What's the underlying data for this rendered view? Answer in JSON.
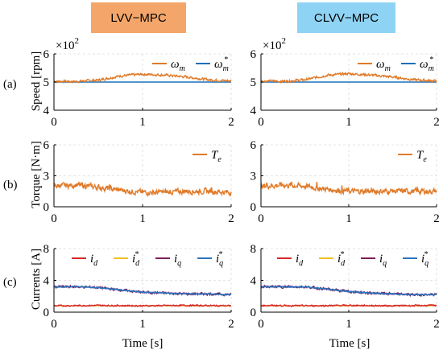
{
  "colors": {
    "omega_m": "#e07b2a",
    "omega_ref": "#1f6fb8",
    "torque": "#e07b2a",
    "i_d": "#d62728",
    "i_d_ref": "#f0c020",
    "i_q": "#7b1f5c",
    "i_q_ref": "#2a74c0",
    "header_lvv": "#f4a66a",
    "header_clvv": "#8fd3f4"
  },
  "headers": [
    "LVV−MPC",
    "CLVV−MPC"
  ],
  "rows": [
    {
      "label": "(a)",
      "ylabel": "Speed [rpm]",
      "yticks": [
        "4",
        "5",
        "6"
      ],
      "multiplier": "×10",
      "multiplier_exp": "2"
    },
    {
      "label": "(b)",
      "ylabel": "Torque [N·m]",
      "yticks": [
        "0",
        "3",
        "6"
      ]
    },
    {
      "label": "(c)",
      "ylabel": "Currents [A]",
      "yticks": [
        "0",
        "4",
        "8"
      ]
    }
  ],
  "xticks": [
    "0",
    "1",
    "2"
  ],
  "xlabel": "Time [s]",
  "legends": {
    "speed": [
      {
        "sym": "ω",
        "sub": "m",
        "sup": ""
      },
      {
        "sym": "ω",
        "sub": "m",
        "sup": "*"
      }
    ],
    "torque": [
      {
        "sym": "T",
        "sub": "e",
        "sup": ""
      }
    ],
    "currents": [
      {
        "sym": "i",
        "sub": "d",
        "sup": ""
      },
      {
        "sym": "i",
        "sub": "d",
        "sup": "*"
      },
      {
        "sym": "i",
        "sub": "q",
        "sup": ""
      },
      {
        "sym": "i",
        "sub": "q",
        "sup": "*"
      }
    ]
  },
  "chart_data": [
    {
      "type": "line",
      "panel": "LVV-MPC speed",
      "xlim": [
        0,
        2
      ],
      "ylim": [
        4,
        6
      ],
      "ylabel": "Speed [rpm]",
      "series": [
        {
          "name": "ω_m",
          "x": [
            0,
            0.25,
            0.5,
            0.75,
            1.0,
            1.25,
            1.5,
            1.75,
            2.0
          ],
          "y": [
            5.03,
            5.02,
            5.07,
            5.22,
            5.28,
            5.25,
            5.18,
            5.08,
            5.04
          ]
        },
        {
          "name": "ω_m*",
          "x": [
            0,
            2
          ],
          "y": [
            5.0,
            5.0
          ]
        }
      ]
    },
    {
      "type": "line",
      "panel": "CLVV-MPC speed",
      "xlim": [
        0,
        2
      ],
      "ylim": [
        4,
        6
      ],
      "ylabel": "Speed [rpm]",
      "series": [
        {
          "name": "ω_m",
          "x": [
            0,
            0.25,
            0.5,
            0.75,
            1.0,
            1.25,
            1.5,
            1.75,
            2.0
          ],
          "y": [
            5.04,
            5.03,
            5.08,
            5.24,
            5.3,
            5.25,
            5.18,
            5.08,
            5.04
          ]
        },
        {
          "name": "ω_m*",
          "x": [
            0,
            2
          ],
          "y": [
            5.0,
            5.0
          ]
        }
      ]
    },
    {
      "type": "line",
      "panel": "LVV-MPC torque",
      "xlim": [
        0,
        2
      ],
      "ylim": [
        0,
        6
      ],
      "ylabel": "Torque [N·m]",
      "series": [
        {
          "name": "T_e",
          "x": [
            0,
            0.25,
            0.5,
            0.75,
            1.0,
            1.25,
            1.5,
            1.75,
            2.0
          ],
          "y": [
            2.0,
            2.1,
            1.9,
            1.6,
            1.4,
            1.4,
            1.5,
            1.5,
            1.4
          ]
        }
      ]
    },
    {
      "type": "line",
      "panel": "CLVV-MPC torque",
      "xlim": [
        0,
        2
      ],
      "ylim": [
        0,
        6
      ],
      "ylabel": "Torque [N·m]",
      "series": [
        {
          "name": "T_e",
          "x": [
            0,
            0.25,
            0.5,
            0.75,
            1.0,
            1.25,
            1.5,
            1.75,
            2.0
          ],
          "y": [
            2.0,
            2.1,
            2.0,
            1.7,
            1.5,
            1.5,
            1.5,
            1.5,
            1.5
          ]
        }
      ]
    },
    {
      "type": "line",
      "panel": "LVV-MPC currents",
      "xlim": [
        0,
        2
      ],
      "ylim": [
        0,
        8
      ],
      "ylabel": "Currents [A]",
      "series": [
        {
          "name": "i_d",
          "x": [
            0,
            0.5,
            1.0,
            1.5,
            2.0
          ],
          "y": [
            0.8,
            0.85,
            0.8,
            0.85,
            0.8
          ]
        },
        {
          "name": "i_d*",
          "x": [
            0,
            2
          ],
          "y": [
            0.8,
            0.8
          ]
        },
        {
          "name": "i_q",
          "x": [
            0,
            0.25,
            0.5,
            0.75,
            1.0,
            1.25,
            1.5,
            1.75,
            2.0
          ],
          "y": [
            3.2,
            3.2,
            3.1,
            2.8,
            2.5,
            2.4,
            2.3,
            2.3,
            2.2
          ]
        },
        {
          "name": "i_q*",
          "x": [
            0,
            0.25,
            0.5,
            0.75,
            1.0,
            1.25,
            1.5,
            1.75,
            2.0
          ],
          "y": [
            3.2,
            3.2,
            3.1,
            2.8,
            2.5,
            2.4,
            2.3,
            2.3,
            2.2
          ]
        }
      ]
    },
    {
      "type": "line",
      "panel": "CLVV-MPC currents",
      "xlim": [
        0,
        2
      ],
      "ylim": [
        0,
        8
      ],
      "ylabel": "Currents [A]",
      "series": [
        {
          "name": "i_d",
          "x": [
            0,
            0.5,
            1.0,
            1.5,
            2.0
          ],
          "y": [
            0.85,
            0.8,
            0.85,
            0.8,
            0.85
          ]
        },
        {
          "name": "i_d*",
          "x": [
            0,
            2
          ],
          "y": [
            0.8,
            0.8
          ]
        },
        {
          "name": "i_q",
          "x": [
            0,
            0.25,
            0.5,
            0.75,
            1.0,
            1.25,
            1.5,
            1.75,
            2.0
          ],
          "y": [
            3.2,
            3.2,
            3.2,
            2.9,
            2.6,
            2.4,
            2.3,
            2.2,
            2.2
          ]
        },
        {
          "name": "i_q*",
          "x": [
            0,
            0.25,
            0.5,
            0.75,
            1.0,
            1.25,
            1.5,
            1.75,
            2.0
          ],
          "y": [
            3.2,
            3.2,
            3.2,
            2.9,
            2.6,
            2.4,
            2.3,
            2.2,
            2.2
          ]
        }
      ]
    }
  ]
}
